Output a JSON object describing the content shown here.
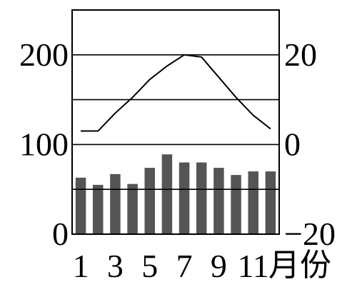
{
  "chart_data": {
    "type": "bar",
    "overlay_type": "line",
    "x": [
      1,
      2,
      3,
      4,
      5,
      6,
      7,
      8,
      9,
      10,
      11,
      12
    ],
    "x_ticks": [
      1,
      3,
      5,
      7,
      9,
      11
    ],
    "x_tick_labels": [
      "1",
      "3",
      "5",
      "7",
      "9",
      "11"
    ],
    "xlabel": "月份",
    "bars": {
      "values": [
        63,
        55,
        67,
        56,
        74,
        89,
        80,
        80,
        74,
        66,
        70,
        70
      ],
      "color": "#555555"
    },
    "line": {
      "values": [
        3,
        3,
        7,
        10.5,
        14.5,
        17.5,
        20,
        19.5,
        15,
        10.5,
        6.5,
        3.5
      ],
      "color": "#000000"
    },
    "y_left": {
      "ylim": [
        0,
        250
      ],
      "ticks": [
        0,
        100,
        200
      ],
      "tick_labels": [
        "0",
        "100",
        "200"
      ]
    },
    "y_right": {
      "ylim": [
        -20,
        30
      ],
      "ticks": [
        -20,
        0,
        20
      ],
      "tick_labels": [
        "−20",
        "0",
        "20"
      ]
    },
    "gridlines_left_units": [
      50,
      100,
      150,
      200
    ],
    "grid": true,
    "legend": false,
    "frame_color": "#000000"
  }
}
